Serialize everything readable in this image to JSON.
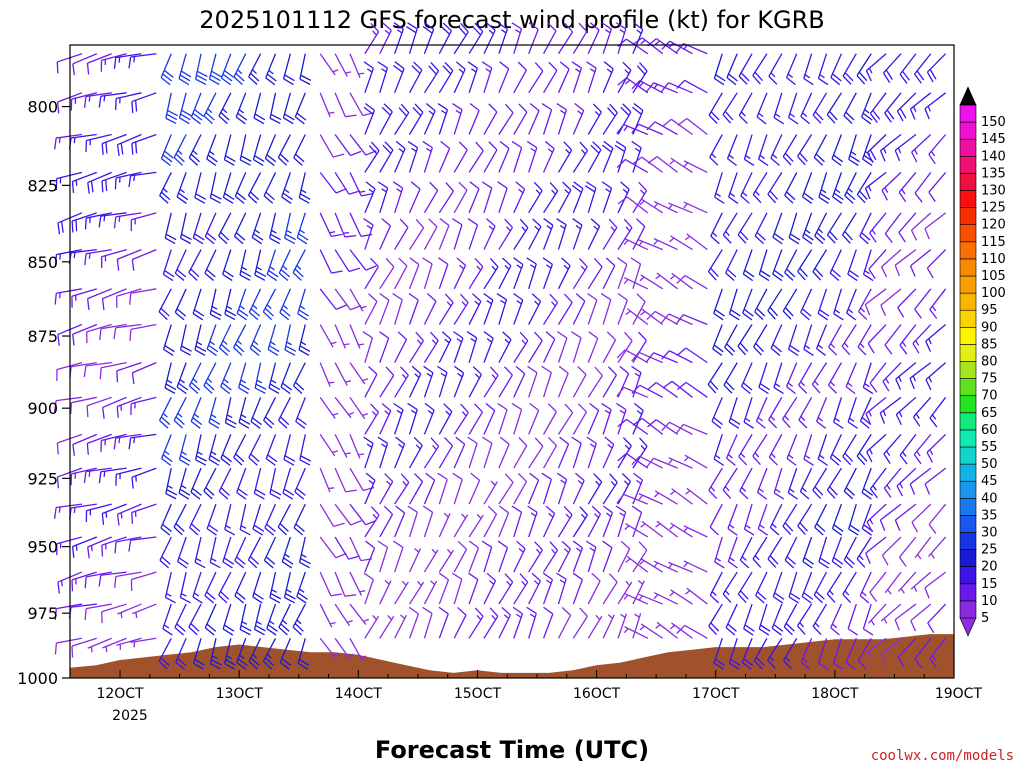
{
  "chart_data": {
    "type": "wind-barb-profile",
    "title": "2025101112 GFS forecast wind profile (kt) for KGRB",
    "xlabel": "Forecast Time (UTC)",
    "ylabel": "",
    "credit": "coolwx.com/models",
    "x_ticks": [
      "12OCT",
      "13OCT",
      "14OCT",
      "15OCT",
      "16OCT",
      "17OCT",
      "18OCT",
      "19OCT"
    ],
    "x_year": "2025",
    "xlim_days": [
      11.58,
      19.0
    ],
    "y_ticks": [
      800,
      825,
      850,
      875,
      900,
      925,
      950,
      975,
      1000
    ],
    "ylim_hpa": [
      781,
      1000
    ],
    "y_scale": "log-pressure",
    "colorbar": {
      "labels": [
        5,
        10,
        15,
        20,
        25,
        30,
        35,
        40,
        45,
        50,
        55,
        60,
        65,
        70,
        75,
        80,
        85,
        90,
        95,
        100,
        105,
        110,
        115,
        120,
        125,
        130,
        135,
        140,
        145,
        150
      ],
      "colors": [
        "#8a2be2",
        "#6a18ee",
        "#3e12e8",
        "#1a1ad4",
        "#1836e6",
        "#1a56ee",
        "#1a78ee",
        "#1a96ee",
        "#12b4e6",
        "#12d4cc",
        "#12eab4",
        "#12ea7a",
        "#22e222",
        "#5ee21e",
        "#a6e41c",
        "#e4ee14",
        "#fff200",
        "#f8d400",
        "#f8b600",
        "#f8a000",
        "#f88a00",
        "#f87000",
        "#f85000",
        "#f83000",
        "#f81010",
        "#f01040",
        "#f01070",
        "#f010a0",
        "#f010d0",
        "#f010f0"
      ],
      "under_color": "#8a2be2",
      "over_color": "#000000"
    },
    "terrain_color": "#a0522d",
    "surface_pressure_hpa": [
      [
        11.58,
        996
      ],
      [
        11.8,
        995
      ],
      [
        12.0,
        993
      ],
      [
        12.2,
        992
      ],
      [
        12.4,
        991
      ],
      [
        12.6,
        990
      ],
      [
        12.8,
        988
      ],
      [
        13.0,
        987
      ],
      [
        13.2,
        988
      ],
      [
        13.4,
        989
      ],
      [
        13.6,
        990
      ],
      [
        13.8,
        990
      ],
      [
        14.0,
        991
      ],
      [
        14.2,
        993
      ],
      [
        14.4,
        995
      ],
      [
        14.6,
        997
      ],
      [
        14.8,
        998
      ],
      [
        15.0,
        997
      ],
      [
        15.2,
        998
      ],
      [
        15.4,
        998
      ],
      [
        15.6,
        998
      ],
      [
        15.8,
        997
      ],
      [
        16.0,
        995
      ],
      [
        16.2,
        994
      ],
      [
        16.4,
        992
      ],
      [
        16.6,
        990
      ],
      [
        16.8,
        989
      ],
      [
        17.0,
        988
      ],
      [
        17.2,
        988
      ],
      [
        17.4,
        988
      ],
      [
        17.6,
        987
      ],
      [
        17.8,
        986
      ],
      [
        18.0,
        985
      ],
      [
        18.2,
        985
      ],
      [
        18.4,
        985
      ],
      [
        18.6,
        984
      ],
      [
        18.8,
        983
      ],
      [
        19.0,
        983
      ]
    ],
    "levels_hpa": [
      780,
      792,
      805,
      817,
      830,
      842,
      855,
      867,
      880,
      892,
      905,
      917,
      930,
      942,
      955,
      967,
      980
    ],
    "wind_segments": [
      {
        "t_start": 11.58,
        "t_end": 12.42,
        "dir_deg": 255,
        "speed_kt": 15
      },
      {
        "t_start": 12.42,
        "t_end": 13.67,
        "dir_deg": 200,
        "speed_kt": 25
      },
      {
        "t_start": 13.67,
        "t_end": 14.0,
        "dir_deg": 150,
        "speed_kt": 10
      },
      {
        "t_start": 14.0,
        "t_end": 16.4,
        "dir_deg": 25,
        "speed_kt": 15
      },
      {
        "t_start": 16.4,
        "t_end": 17.0,
        "dir_deg": 300,
        "speed_kt": 10
      },
      {
        "t_start": 17.0,
        "t_end": 18.4,
        "dir_deg": 205,
        "speed_kt": 20
      },
      {
        "t_start": 18.4,
        "t_end": 19.0,
        "dir_deg": 225,
        "speed_kt": 15
      }
    ]
  }
}
